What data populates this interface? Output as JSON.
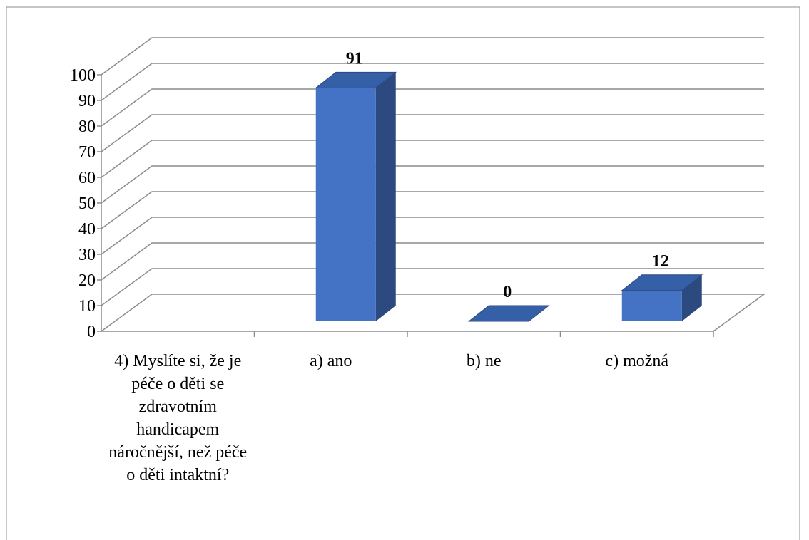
{
  "chart_data": {
    "type": "bar3d",
    "categories": [
      "4) Myslíte si, že je péče o děti se zdravotním handicapem náročnější, než péče o děti intaktní?",
      "a) ano",
      "b) ne",
      "c) možná"
    ],
    "values": [
      null,
      91,
      0,
      12
    ],
    "color": "#4472c4",
    "ylim": [
      0,
      100
    ],
    "yticks": [
      0,
      10,
      20,
      30,
      40,
      50,
      60,
      70,
      80,
      90,
      100
    ],
    "grid": true
  }
}
